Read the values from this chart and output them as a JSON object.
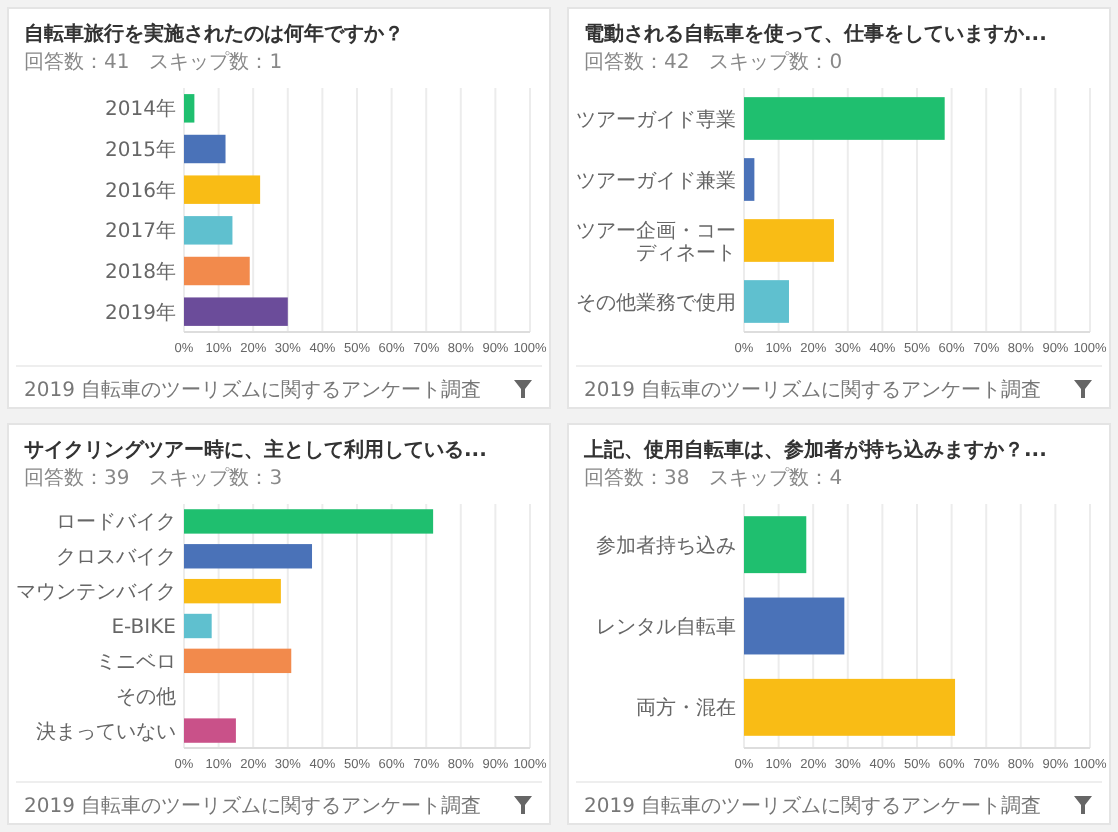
{
  "chart_data": [
    {
      "type": "bar",
      "orientation": "horizontal",
      "title": "自転車旅行を実施されたのは何年ですか？",
      "subtitle": "回答数：41　スキップ数：1",
      "categories": [
        "2014年",
        "2015年",
        "2016年",
        "2017年",
        "2018年",
        "2019年"
      ],
      "colors": [
        "#1fbf6f",
        "#4a72b8",
        "#f9bc15",
        "#5fc0cf",
        "#f28a4c",
        "#6b4c9a"
      ],
      "values": [
        3,
        12,
        22,
        14,
        19,
        30
      ],
      "xlim": [
        0,
        100
      ],
      "xticks": [
        {
          "value": 0,
          "label": "0%"
        },
        {
          "value": 10,
          "label": "10%"
        },
        {
          "value": 20,
          "label": "20%"
        },
        {
          "value": 30,
          "label": "30%"
        },
        {
          "value": 40,
          "label": "40%"
        },
        {
          "value": 50,
          "label": "50%"
        },
        {
          "value": 60,
          "label": "60%"
        },
        {
          "value": 70,
          "label": "70%"
        },
        {
          "value": 80,
          "label": "80%"
        },
        {
          "value": 90,
          "label": "90%"
        },
        {
          "value": 100,
          "label": "100%"
        }
      ],
      "grid": "x",
      "annotations": [
        "2019 自転車のツーリズムに関するアンケート調査"
      ]
    },
    {
      "type": "bar",
      "orientation": "horizontal",
      "title": "電動される自転車を使って、仕事をしていますか...",
      "subtitle": "回答数：42　スキップ数：0",
      "categories": [
        "ツアーガイド専業",
        "ツアーガイド兼業",
        "ツアー企画・コーディネート",
        "その他業務で使用"
      ],
      "colors": [
        "#1fbf6f",
        "#4a72b8",
        "#f9bc15",
        "#5fc0cf"
      ],
      "values": [
        58,
        3,
        26,
        13
      ],
      "xlim": [
        0,
        100
      ],
      "xticks": [
        {
          "value": 0,
          "label": "0%"
        },
        {
          "value": 10,
          "label": "10%"
        },
        {
          "value": 20,
          "label": "20%"
        },
        {
          "value": 30,
          "label": "30%"
        },
        {
          "value": 40,
          "label": "40%"
        },
        {
          "value": 50,
          "label": "50%"
        },
        {
          "value": 60,
          "label": "60%"
        },
        {
          "value": 70,
          "label": "70%"
        },
        {
          "value": 80,
          "label": "80%"
        },
        {
          "value": 90,
          "label": "90%"
        },
        {
          "value": 100,
          "label": "100%"
        }
      ],
      "grid": "x",
      "annotations": [
        "2019 自転車のツーリズムに関するアンケート調査"
      ]
    },
    {
      "type": "bar",
      "orientation": "horizontal",
      "title": "サイクリングツアー時に、主として利用している...",
      "subtitle": "回答数：39　スキップ数：3",
      "categories": [
        "ロードバイク",
        "クロスバイク",
        "マウンテンバイク",
        "E-BIKE",
        "ミニベロ",
        "その他",
        "決まっていない"
      ],
      "colors": [
        "#1fbf6f",
        "#4a72b8",
        "#f9bc15",
        "#5fc0cf",
        "#f28a4c",
        "#9aa0a6",
        "#c95189"
      ],
      "values": [
        72,
        37,
        28,
        8,
        31,
        0,
        15
      ],
      "xlim": [
        0,
        100
      ],
      "xticks": [
        {
          "value": 0,
          "label": "0%"
        },
        {
          "value": 10,
          "label": "10%"
        },
        {
          "value": 20,
          "label": "20%"
        },
        {
          "value": 30,
          "label": "30%"
        },
        {
          "value": 40,
          "label": "40%"
        },
        {
          "value": 50,
          "label": "50%"
        },
        {
          "value": 60,
          "label": "60%"
        },
        {
          "value": 70,
          "label": "70%"
        },
        {
          "value": 80,
          "label": "80%"
        },
        {
          "value": 90,
          "label": "90%"
        },
        {
          "value": 100,
          "label": "100%"
        }
      ],
      "grid": "x",
      "annotations": [
        "2019 自転車のツーリズムに関するアンケート調査"
      ]
    },
    {
      "type": "bar",
      "orientation": "horizontal",
      "title": "上記、使用自転車は、参加者が持ち込みますか？...",
      "subtitle": "回答数：38　スキップ数：4",
      "categories": [
        "参加者持ち込み",
        "レンタル自転車",
        "両方・混在"
      ],
      "colors": [
        "#1fbf6f",
        "#4a72b8",
        "#f9bc15"
      ],
      "values": [
        18,
        29,
        61
      ],
      "xlim": [
        0,
        100
      ],
      "xticks": [
        {
          "value": 0,
          "label": "0%"
        },
        {
          "value": 10,
          "label": "10%"
        },
        {
          "value": 20,
          "label": "20%"
        },
        {
          "value": 30,
          "label": "30%"
        },
        {
          "value": 40,
          "label": "40%"
        },
        {
          "value": 50,
          "label": "50%"
        },
        {
          "value": 60,
          "label": "60%"
        },
        {
          "value": 70,
          "label": "70%"
        },
        {
          "value": 80,
          "label": "80%"
        },
        {
          "value": 90,
          "label": "90%"
        },
        {
          "value": 100,
          "label": "100%"
        }
      ],
      "grid": "x",
      "annotations": [
        "2019 自転車のツーリズムに関するアンケート調査"
      ]
    }
  ]
}
